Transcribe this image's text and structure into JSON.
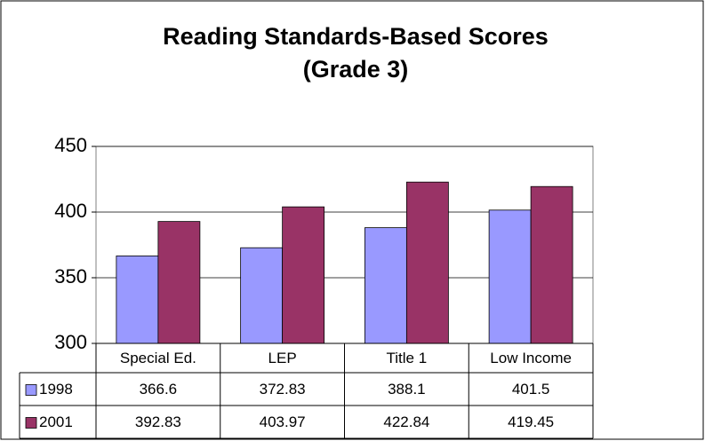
{
  "chart_data": {
    "type": "bar",
    "title": [
      "Reading Standards-Based Scores",
      "(Grade 3)"
    ],
    "categories": [
      "Special Ed.",
      "LEP",
      "Title 1",
      "Low Income"
    ],
    "series": [
      {
        "name": "1998",
        "color": "#9999ff",
        "values": [
          366.6,
          372.83,
          388.1,
          401.5
        ]
      },
      {
        "name": "2001",
        "color": "#993366",
        "values": [
          392.83,
          403.97,
          422.84,
          419.45
        ]
      }
    ],
    "ylim": [
      300,
      450
    ],
    "yticks": [
      300,
      350,
      400,
      450
    ],
    "grid": true,
    "data_table": true
  }
}
